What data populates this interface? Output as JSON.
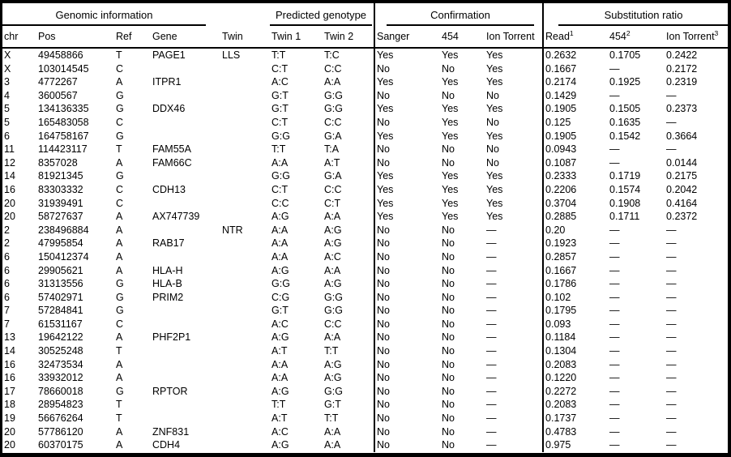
{
  "colors": {
    "text": "#000000",
    "background": "#ffffff",
    "border": "#000000"
  },
  "table": {
    "group_headers": [
      {
        "label": "Genomic information",
        "span": 4,
        "underline": true
      },
      {
        "label": "",
        "span": 1,
        "underline": false
      },
      {
        "label": "Predicted genotype",
        "span": 2,
        "underline": true
      },
      {
        "label": "Confirmation",
        "span": 3,
        "underline": true
      },
      {
        "label": "Substitution ratio",
        "span": 3,
        "underline": true
      }
    ],
    "columns": [
      {
        "key": "chr",
        "label": "chr"
      },
      {
        "key": "pos",
        "label": "Pos"
      },
      {
        "key": "ref",
        "label": "Ref"
      },
      {
        "key": "gene",
        "label": "Gene"
      },
      {
        "key": "twin",
        "label": "Twin"
      },
      {
        "key": "twin-1",
        "label": "Twin 1"
      },
      {
        "key": "twin-2",
        "label": "Twin 2"
      },
      {
        "key": "sanger",
        "label": "Sanger"
      },
      {
        "key": "454",
        "label": "454"
      },
      {
        "key": "ion-torrent",
        "label": "Ion Torrent"
      },
      {
        "key": "read-ratio",
        "label": "Read",
        "sup": "1"
      },
      {
        "key": "454-ratio",
        "label": "454",
        "sup": "2"
      },
      {
        "key": "ion-torrent-ratio",
        "label": "Ion Torrent",
        "sup": "3"
      }
    ],
    "rows": [
      [
        "X",
        "49458866",
        "T",
        "PAGE1",
        "LLS",
        "T:T",
        "T:C",
        "Yes",
        "Yes",
        "Yes",
        "0.2632",
        "0.1705",
        "0.2422"
      ],
      [
        "X",
        "103014545",
        "C",
        "",
        "",
        "C:T",
        "C:C",
        "No",
        "No",
        "Yes",
        "0.1667",
        "—",
        "0.2172"
      ],
      [
        "3",
        "4772267",
        "A",
        "ITPR1",
        "",
        "A:C",
        "A:A",
        "Yes",
        "Yes",
        "Yes",
        "0.2174",
        "0.1925",
        "0.2319"
      ],
      [
        "4",
        "3600567",
        "G",
        "",
        "",
        "G:T",
        "G:G",
        "No",
        "No",
        "No",
        "0.1429",
        "—",
        "—"
      ],
      [
        "5",
        "134136335",
        "G",
        "DDX46",
        "",
        "G:T",
        "G:G",
        "Yes",
        "Yes",
        "Yes",
        "0.1905",
        "0.1505",
        "0.2373"
      ],
      [
        "5",
        "165483058",
        "C",
        "",
        "",
        "C:T",
        "C:C",
        "No",
        "Yes",
        "No",
        "0.125",
        "0.1635",
        "—"
      ],
      [
        "6",
        "164758167",
        "G",
        "",
        "",
        "G:G",
        "G:A",
        "Yes",
        "Yes",
        "Yes",
        "0.1905",
        "0.1542",
        "0.3664"
      ],
      [
        "11",
        "114423117",
        "T",
        "FAM55A",
        "",
        "T:T",
        "T:A",
        "No",
        "No",
        "No",
        "0.0943",
        "—",
        "—"
      ],
      [
        "12",
        "8357028",
        "A",
        "FAM66C",
        "",
        "A:A",
        "A:T",
        "No",
        "No",
        "No",
        "0.1087",
        "—",
        "0.0144"
      ],
      [
        "14",
        "81921345",
        "G",
        "",
        "",
        "G:G",
        "G:A",
        "Yes",
        "Yes",
        "Yes",
        "0.2333",
        "0.1719",
        "0.2175"
      ],
      [
        "16",
        "83303332",
        "C",
        "CDH13",
        "",
        "C:T",
        "C:C",
        "Yes",
        "Yes",
        "Yes",
        "0.2206",
        "0.1574",
        "0.2042"
      ],
      [
        "20",
        "31939491",
        "C",
        "",
        "",
        "C:C",
        "C:T",
        "Yes",
        "Yes",
        "Yes",
        "0.3704",
        "0.1908",
        "0.4164"
      ],
      [
        "20",
        "58727637",
        "A",
        "AX747739",
        "",
        "A:G",
        "A:A",
        "Yes",
        "Yes",
        "Yes",
        "0.2885",
        "0.1711",
        "0.2372"
      ],
      [
        "2",
        "238496884",
        "A",
        "",
        "NTR",
        "A:A",
        "A:G",
        "No",
        "No",
        "—",
        "0.20",
        "—",
        "—"
      ],
      [
        "2",
        "47995854",
        "A",
        "RAB17",
        "",
        "A:A",
        "A:G",
        "No",
        "No",
        "—",
        "0.1923",
        "—",
        "—"
      ],
      [
        "6",
        "150412374",
        "A",
        "",
        "",
        "A:A",
        "A:C",
        "No",
        "No",
        "—",
        "0.2857",
        "—",
        "—"
      ],
      [
        "6",
        "29905621",
        "A",
        "HLA-H",
        "",
        "A:G",
        "A:A",
        "No",
        "No",
        "—",
        "0.1667",
        "—",
        "—"
      ],
      [
        "6",
        "31313556",
        "G",
        "HLA-B",
        "",
        "G:G",
        "A:G",
        "No",
        "No",
        "—",
        "0.1786",
        "—",
        "—"
      ],
      [
        "6",
        "57402971",
        "G",
        "PRIM2",
        "",
        "C:G",
        "G:G",
        "No",
        "No",
        "—",
        "0.102",
        "—",
        "—"
      ],
      [
        "7",
        "57284841",
        "G",
        "",
        "",
        "G:T",
        "G:G",
        "No",
        "No",
        "—",
        "0.1795",
        "—",
        "—"
      ],
      [
        "7",
        "61531167",
        "C",
        "",
        "",
        "A:C",
        "C:C",
        "No",
        "No",
        "—",
        "0.093",
        "—",
        "—"
      ],
      [
        "13",
        "19642122",
        "A",
        "PHF2P1",
        "",
        "A:G",
        "A:A",
        "No",
        "No",
        "—",
        "0.1184",
        "—",
        "—"
      ],
      [
        "14",
        "30525248",
        "T",
        "",
        "",
        "A:T",
        "T:T",
        "No",
        "No",
        "—",
        "0.1304",
        "—",
        "—"
      ],
      [
        "16",
        "32473534",
        "A",
        "",
        "",
        "A:A",
        "A:G",
        "No",
        "No",
        "—",
        "0.2083",
        "—",
        "—"
      ],
      [
        "16",
        "33932012",
        "A",
        "",
        "",
        "A:A",
        "A:G",
        "No",
        "No",
        "—",
        "0.1220",
        "—",
        "—"
      ],
      [
        "17",
        "78660018",
        "G",
        "RPTOR",
        "",
        "A:G",
        "G:G",
        "No",
        "No",
        "—",
        "0.2272",
        "—",
        "—"
      ],
      [
        "18",
        "28954823",
        "T",
        "",
        "",
        "T:T",
        "G:T",
        "No",
        "No",
        "—",
        "0.2083",
        "—",
        "—"
      ],
      [
        "19",
        "56676264",
        "T",
        "",
        "",
        "A:T",
        "T:T",
        "No",
        "No",
        "—",
        "0.1737",
        "—",
        "—"
      ],
      [
        "20",
        "57786120",
        "A",
        "ZNF831",
        "",
        "A:C",
        "A:A",
        "No",
        "No",
        "—",
        "0.4783",
        "—",
        "—"
      ],
      [
        "20",
        "60370175",
        "A",
        "CDH4",
        "",
        "A:G",
        "A:A",
        "No",
        "No",
        "—",
        "0.975",
        "—",
        "—"
      ]
    ]
  }
}
